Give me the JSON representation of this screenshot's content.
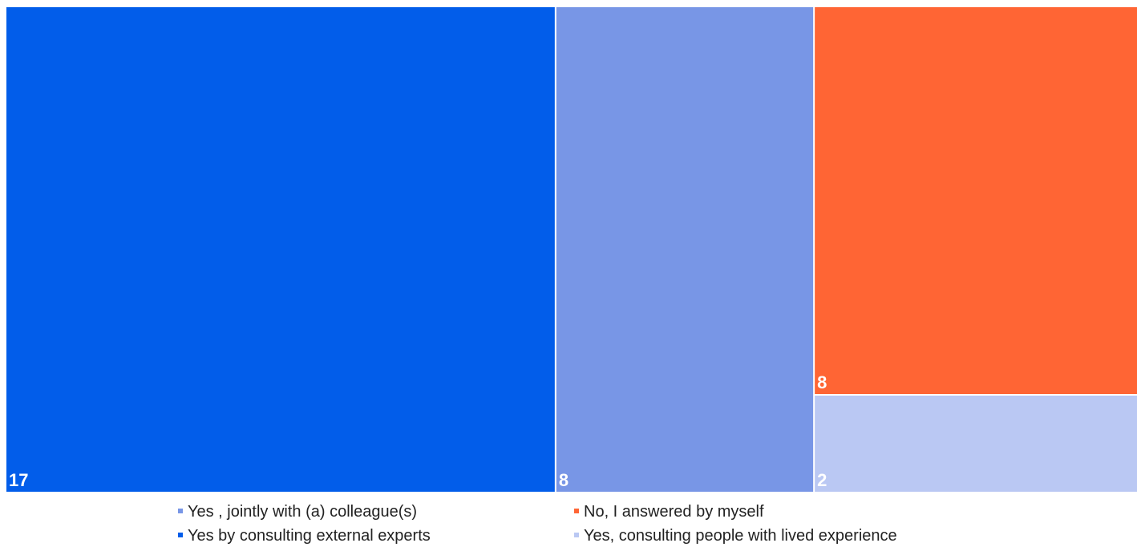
{
  "chart_data": {
    "type": "treemap",
    "series": [
      {
        "name": "Yes by consulting external experts",
        "value": 17,
        "label": "17",
        "color": "#025DEA"
      },
      {
        "name": "Yes , jointly with (a) colleague(s)",
        "value": 8,
        "label": "8",
        "color": "#7896E6"
      },
      {
        "name": "No,  I answered by myself",
        "value": 8,
        "label": "8",
        "color": "#FF6534"
      },
      {
        "name": "Yes, consulting people with lived experience",
        "value": 2,
        "label": "2",
        "color": "#BAC8F3"
      }
    ],
    "legend": {
      "placement": "bottom",
      "order": [
        "Yes , jointly with (a) colleague(s)",
        "No,  I answered by myself",
        "Yes by consulting external experts",
        "Yes, consulting people with lived experience"
      ]
    }
  }
}
